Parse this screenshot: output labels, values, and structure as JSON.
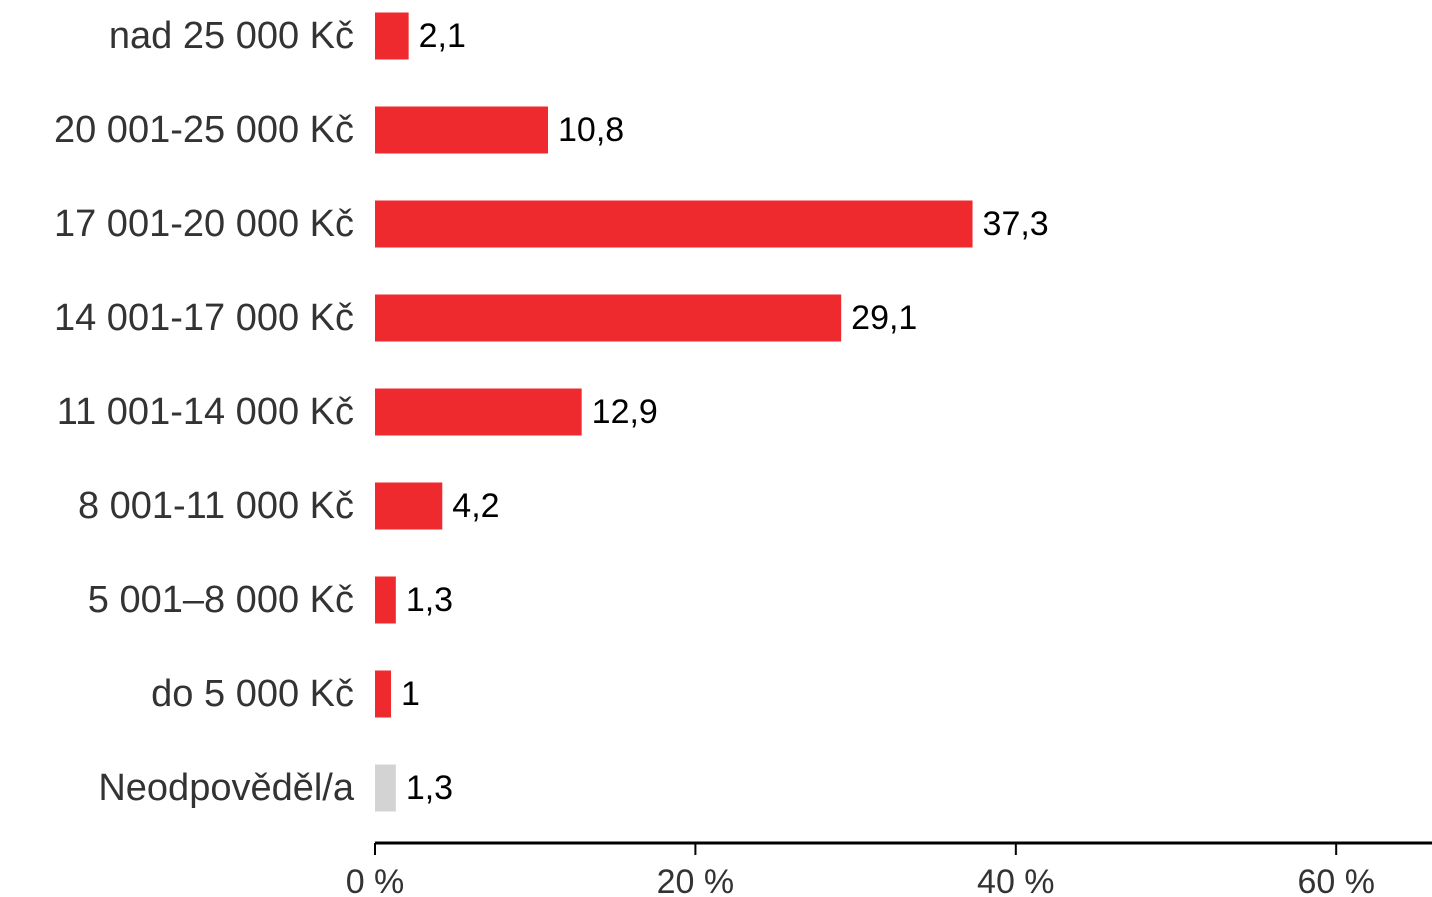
{
  "chart_data": {
    "type": "bar",
    "orientation": "horizontal",
    "title": "",
    "xlabel": "",
    "ylabel": "",
    "categories": [
      "nad 25 000 Kč",
      "20 001-25 000 Kč",
      "17 001-20 000 Kč",
      "14 001-17 000 Kč",
      "11 001-14 000 Kč",
      "8 001-11 000 Kč",
      "5 001–8 000 Kč",
      "do 5 000 Kč",
      "Neodpověděl/a"
    ],
    "values": [
      2.1,
      10.8,
      37.3,
      29.1,
      12.9,
      4.2,
      1.3,
      1,
      1.3
    ],
    "value_labels": [
      "2,1",
      "10,8",
      "37,3",
      "29,1",
      "12,9",
      "4,2",
      "1,3",
      "1",
      "1,3"
    ],
    "bar_colors": [
      "#ee2a2e",
      "#ee2a2e",
      "#ee2a2e",
      "#ee2a2e",
      "#ee2a2e",
      "#ee2a2e",
      "#ee2a2e",
      "#ee2a2e",
      "#d3d3d3"
    ],
    "xlim": [
      0,
      66
    ],
    "x_ticks": [
      0,
      20,
      40,
      60
    ],
    "x_tick_labels": [
      "0 %",
      "20 %",
      "40 %",
      "60 %"
    ],
    "grid": false,
    "legend": "none",
    "axis_color": "#000000"
  }
}
